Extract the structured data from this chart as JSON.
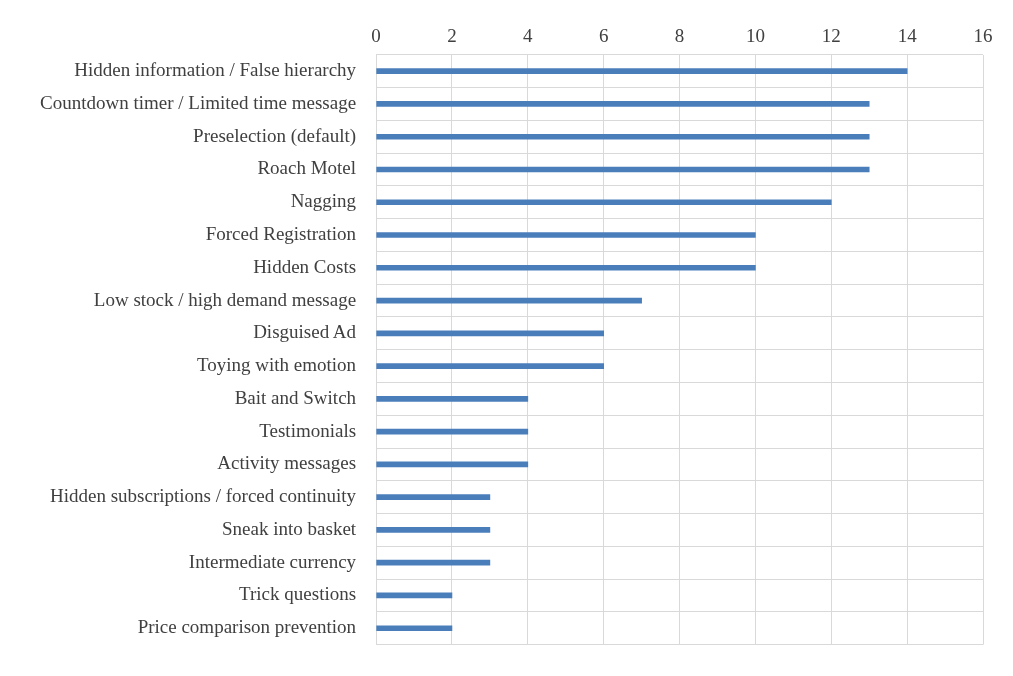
{
  "chart_data": {
    "type": "bar",
    "orientation": "horizontal",
    "categories": [
      "Hidden information / False hierarchy",
      "Countdown timer / Limited time message",
      "Preselection (default)",
      "Roach Motel",
      "Nagging",
      "Forced Registration",
      "Hidden Costs",
      "Low stock / high demand message",
      "Disguised Ad",
      "Toying with emotion",
      "Bait and Switch",
      "Testimonials",
      "Activity messages",
      "Hidden subscriptions / forced continuity",
      "Sneak into basket",
      "Intermediate currency",
      "Trick questions",
      "Price comparison prevention"
    ],
    "values": [
      14,
      13,
      13,
      13,
      12,
      10,
      10,
      7,
      6,
      6,
      4,
      4,
      4,
      3,
      3,
      3,
      2,
      2
    ],
    "color": "#4a7ebb",
    "xlim": [
      0,
      16
    ],
    "xticks": [
      0,
      2,
      4,
      6,
      8,
      10,
      12,
      14,
      16
    ],
    "grid": true
  }
}
